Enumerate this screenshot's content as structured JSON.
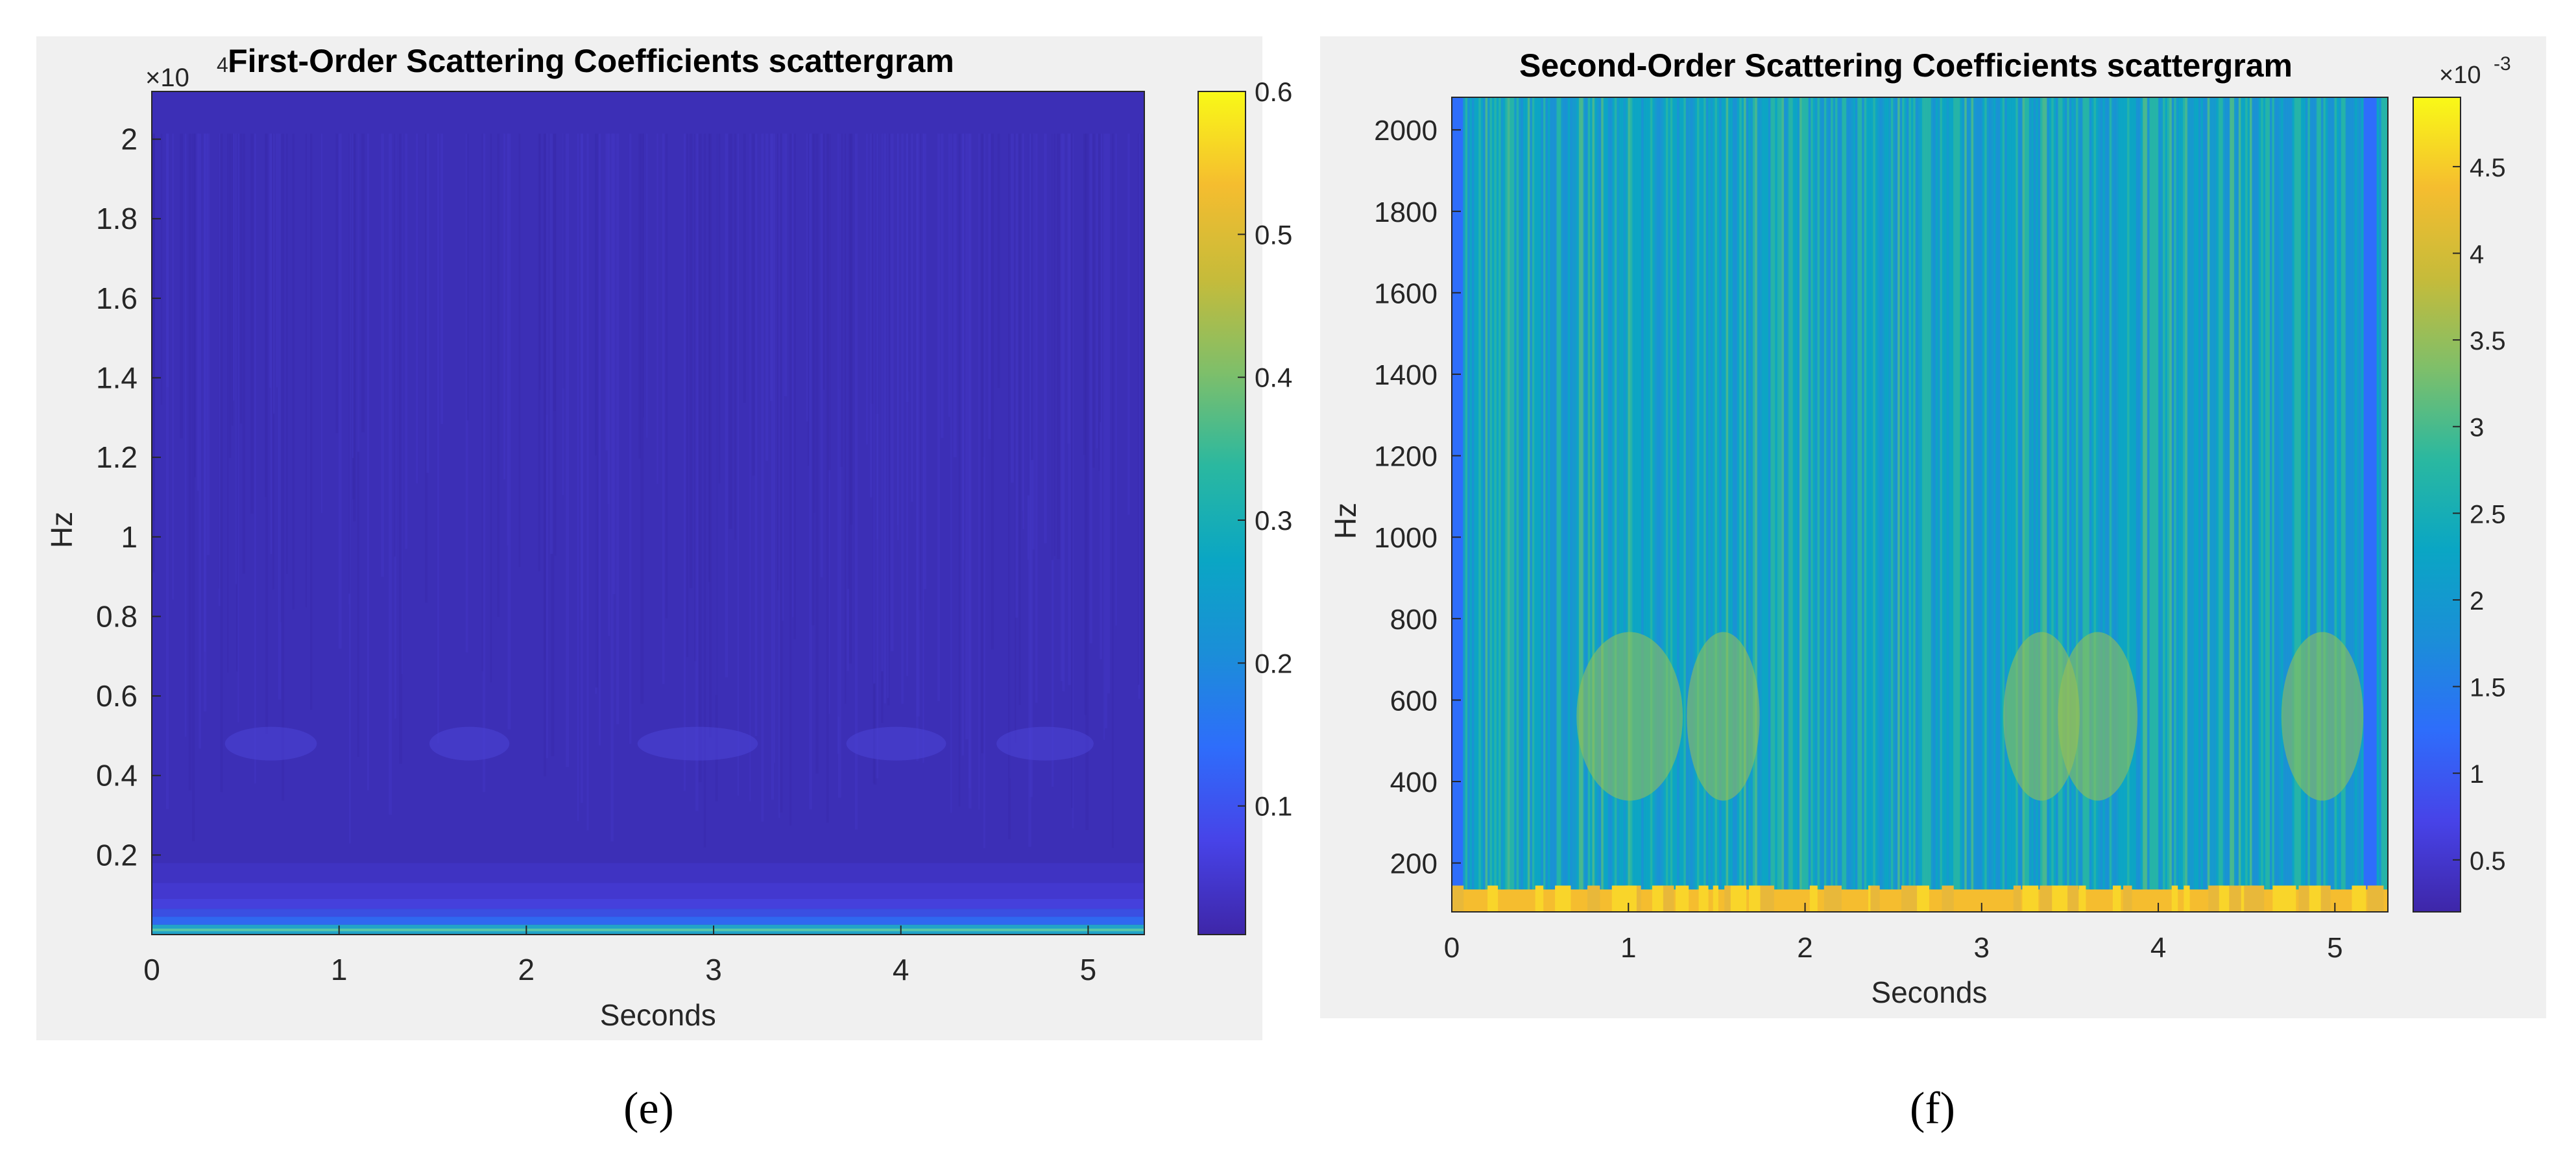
{
  "charts": [
    {
      "id": "e",
      "type": "heatmap",
      "title": "First-Order Scattering Coefficients scattergram",
      "xlabel": "Seconds",
      "ylabel": "Hz",
      "xlim": [
        0,
        5.3
      ],
      "ylim": [
        0,
        21200
      ],
      "xticks": [
        0,
        1,
        2,
        3,
        4,
        5
      ],
      "xtick_labels": [
        "0",
        "1",
        "2",
        "3",
        "4",
        "5"
      ],
      "yticks": [
        2000,
        4000,
        6000,
        8000,
        10000,
        12000,
        14000,
        16000,
        18000,
        20000
      ],
      "ytick_labels": [
        "0.2",
        "0.4",
        "0.6",
        "0.8",
        "1",
        "1.2",
        "1.4",
        "1.6",
        "1.8",
        "2"
      ],
      "y_exponent": "×10",
      "y_exponent_power": "4",
      "colorbar": {
        "range": [
          0.01,
          0.6
        ],
        "ticks": [
          0.1,
          0.2,
          0.3,
          0.4,
          0.5,
          0.6
        ],
        "tick_labels": [
          "0.1",
          "0.2",
          "0.3",
          "0.4",
          "0.5",
          "0.6"
        ],
        "exponent": "",
        "exponent_power": ""
      },
      "caption": "(e)"
    },
    {
      "id": "f",
      "type": "heatmap",
      "title": "Second-Order Scattering Coefficients scattergram",
      "xlabel": "Seconds",
      "ylabel": "Hz",
      "xlim": [
        0,
        5.3
      ],
      "ylim": [
        80,
        2080
      ],
      "xticks": [
        0,
        1,
        2,
        3,
        4,
        5
      ],
      "xtick_labels": [
        "0",
        "1",
        "2",
        "3",
        "4",
        "5"
      ],
      "yticks": [
        200,
        400,
        600,
        800,
        1000,
        1200,
        1400,
        1600,
        1800,
        2000
      ],
      "ytick_labels": [
        "200",
        "400",
        "600",
        "800",
        "1000",
        "1200",
        "1400",
        "1600",
        "1800",
        "2000"
      ],
      "y_exponent": "",
      "y_exponent_power": "",
      "colorbar": {
        "range": [
          0.2,
          4.9
        ],
        "ticks": [
          0.5,
          1,
          1.5,
          2,
          2.5,
          3,
          3.5,
          4,
          4.5
        ],
        "tick_labels": [
          "0.5",
          "1",
          "1.5",
          "2",
          "2.5",
          "3",
          "3.5",
          "4",
          "4.5"
        ],
        "exponent": "×10",
        "exponent_power": "-3"
      },
      "caption": "(f)"
    }
  ],
  "colors": {
    "parula": [
      "#3e26a8",
      "#4743e8",
      "#2e6dfb",
      "#1b8ed8",
      "#0aa6c4",
      "#2ab8a0",
      "#7ebf6a",
      "#c6bb3a",
      "#f5bd2f",
      "#f9f917"
    ],
    "axes": "#262626",
    "figure_bg": "#f0f0f0"
  }
}
